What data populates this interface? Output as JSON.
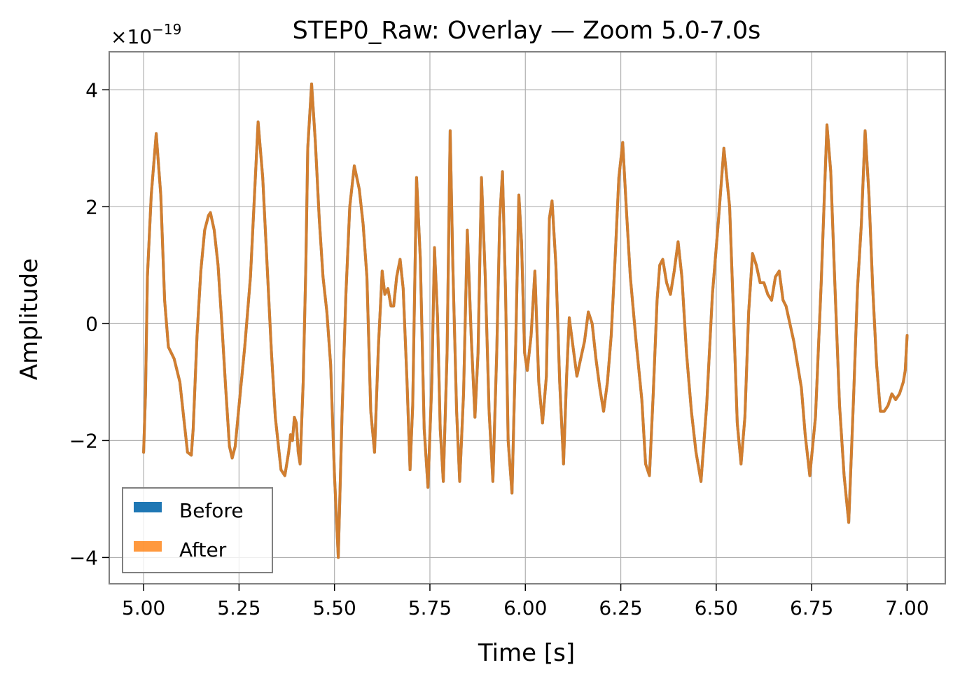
{
  "chart_data": {
    "type": "line",
    "title": "STEP0_Raw: Overlay — Zoom 5.0-7.0s",
    "xlabel": "Time [s]",
    "ylabel": "Amplitude",
    "offset_text": "×10",
    "offset_exponent": "−19",
    "xlim": [
      4.91,
      7.1
    ],
    "ylim": [
      -4.45,
      4.65
    ],
    "grid": true,
    "legend_location": "lower-left",
    "x_ticks": [
      {
        "value": 5.0,
        "label": "5.00"
      },
      {
        "value": 5.25,
        "label": "5.25"
      },
      {
        "value": 5.5,
        "label": "5.50"
      },
      {
        "value": 5.75,
        "label": "5.75"
      },
      {
        "value": 6.0,
        "label": "6.00"
      },
      {
        "value": 6.25,
        "label": "6.25"
      },
      {
        "value": 6.5,
        "label": "6.50"
      },
      {
        "value": 6.75,
        "label": "6.75"
      },
      {
        "value": 7.0,
        "label": "7.00"
      }
    ],
    "y_ticks": [
      {
        "value": -4,
        "label": "−4"
      },
      {
        "value": -2,
        "label": "−2"
      },
      {
        "value": 0,
        "label": "0"
      },
      {
        "value": 2,
        "label": "2"
      },
      {
        "value": 4,
        "label": "4"
      }
    ],
    "series": [
      {
        "name": "Before",
        "color": "#1f77b4",
        "width": 4,
        "alpha": 1.0
      },
      {
        "name": "After",
        "color": "#ff7f0e",
        "width": 4,
        "alpha": 0.8
      }
    ],
    "x": [
      5.0,
      5.005,
      5.01,
      5.02,
      5.033,
      5.045,
      5.055,
      5.065,
      5.08,
      5.095,
      5.105,
      5.115,
      5.125,
      5.13,
      5.14,
      5.15,
      5.16,
      5.17,
      5.175,
      5.185,
      5.195,
      5.205,
      5.215,
      5.225,
      5.232,
      5.24,
      5.25,
      5.265,
      5.28,
      5.3,
      5.312,
      5.325,
      5.335,
      5.345,
      5.36,
      5.37,
      5.38,
      5.385,
      5.39,
      5.395,
      5.4,
      5.405,
      5.41,
      5.418,
      5.425,
      5.43,
      5.44,
      5.45,
      5.46,
      5.47,
      5.48,
      5.49,
      5.5,
      5.51,
      5.52,
      5.53,
      5.54,
      5.552,
      5.565,
      5.575,
      5.585,
      5.595,
      5.605,
      5.615,
      5.625,
      5.632,
      5.64,
      5.648,
      5.655,
      5.663,
      5.672,
      5.68,
      5.69,
      5.698,
      5.705,
      5.715,
      5.725,
      5.735,
      5.745,
      5.755,
      5.762,
      5.77,
      5.777,
      5.785,
      5.795,
      5.803,
      5.81,
      5.82,
      5.828,
      5.838,
      5.848,
      5.858,
      5.868,
      5.876,
      5.885,
      5.895,
      5.905,
      5.915,
      5.925,
      5.933,
      5.94,
      5.948,
      5.955,
      5.965,
      5.975,
      5.983,
      5.99,
      5.998,
      6.005,
      6.015,
      6.025,
      6.035,
      6.045,
      6.055,
      6.063,
      6.07,
      6.08,
      6.09,
      6.1,
      6.108,
      6.115,
      6.125,
      6.135,
      6.145,
      6.155,
      6.165,
      6.175,
      6.185,
      6.195,
      6.205,
      6.215,
      6.225,
      6.235,
      6.245,
      6.255,
      6.265,
      6.275,
      6.29,
      6.305,
      6.315,
      6.325,
      6.335,
      6.345,
      6.352,
      6.36,
      6.37,
      6.38,
      6.39,
      6.4,
      6.41,
      6.422,
      6.435,
      6.447,
      6.46,
      6.475,
      6.49,
      6.505,
      6.52,
      6.535,
      6.545,
      6.555,
      6.565,
      6.575,
      6.585,
      6.595,
      6.605,
      6.615,
      6.625,
      6.635,
      6.645,
      6.655,
      6.665,
      6.675,
      6.683,
      6.693,
      6.703,
      6.713,
      6.723,
      6.733,
      6.745,
      6.76,
      6.775,
      6.79,
      6.8,
      6.81,
      6.823,
      6.835,
      6.847,
      6.86,
      6.87,
      6.88,
      6.89,
      6.9,
      6.91,
      6.92,
      6.93,
      6.94,
      6.95,
      6.96,
      6.97,
      6.98,
      6.99,
      6.995,
      7.0
    ],
    "y": [
      -2.2,
      -1.2,
      0.8,
      2.2,
      3.25,
      2.2,
      0.4,
      -0.4,
      -0.6,
      -1.0,
      -1.6,
      -2.2,
      -2.25,
      -1.8,
      -0.2,
      0.9,
      1.6,
      1.85,
      1.9,
      1.6,
      1.0,
      0.0,
      -1.1,
      -2.1,
      -2.3,
      -2.1,
      -1.4,
      -0.4,
      0.8,
      3.45,
      2.5,
      0.8,
      -0.5,
      -1.6,
      -2.5,
      -2.6,
      -2.2,
      -1.9,
      -2.0,
      -1.6,
      -1.7,
      -2.2,
      -2.4,
      -1.0,
      1.0,
      3.0,
      4.1,
      3.1,
      1.8,
      0.8,
      0.2,
      -0.7,
      -2.6,
      -4.0,
      -1.5,
      0.5,
      2.0,
      2.7,
      2.3,
      1.7,
      0.8,
      -1.5,
      -2.2,
      -0.4,
      0.9,
      0.5,
      0.6,
      0.3,
      0.3,
      0.8,
      1.1,
      0.6,
      -1.0,
      -2.5,
      -1.4,
      2.5,
      1.1,
      -1.8,
      -2.8,
      -1.0,
      1.3,
      0.1,
      -1.8,
      -2.7,
      -0.5,
      3.3,
      1.0,
      -1.5,
      -2.7,
      -1.2,
      1.6,
      -0.2,
      -1.6,
      -0.5,
      2.5,
      0.8,
      -1.5,
      -2.7,
      -0.5,
      1.8,
      2.6,
      0.6,
      -2.0,
      -2.9,
      -0.3,
      2.2,
      1.4,
      -0.5,
      -0.8,
      -0.2,
      0.9,
      -1.0,
      -1.7,
      -0.9,
      1.8,
      2.1,
      1.0,
      -1.0,
      -2.4,
      -0.9,
      0.1,
      -0.4,
      -0.9,
      -0.6,
      -0.3,
      0.2,
      0.0,
      -0.6,
      -1.1,
      -1.5,
      -1.0,
      -0.2,
      1.1,
      2.5,
      3.1,
      1.9,
      0.8,
      -0.3,
      -1.3,
      -2.4,
      -2.6,
      -1.2,
      0.4,
      1.0,
      1.1,
      0.7,
      0.5,
      0.9,
      1.4,
      0.8,
      -0.5,
      -1.5,
      -2.2,
      -2.7,
      -1.4,
      0.5,
      1.7,
      3.0,
      2.0,
      0.2,
      -1.7,
      -2.4,
      -1.6,
      0.2,
      1.2,
      1.0,
      0.7,
      0.7,
      0.5,
      0.4,
      0.8,
      0.9,
      0.4,
      0.3,
      0.0,
      -0.3,
      -0.7,
      -1.1,
      -1.9,
      -2.6,
      -1.6,
      0.7,
      3.4,
      2.6,
      0.8,
      -1.4,
      -2.6,
      -3.4,
      -1.2,
      0.6,
      1.7,
      3.3,
      2.2,
      0.6,
      -0.7,
      -1.5,
      -1.5,
      -1.4,
      -1.2,
      -1.3,
      -1.2,
      -1.0,
      -0.8,
      -0.2
    ]
  }
}
